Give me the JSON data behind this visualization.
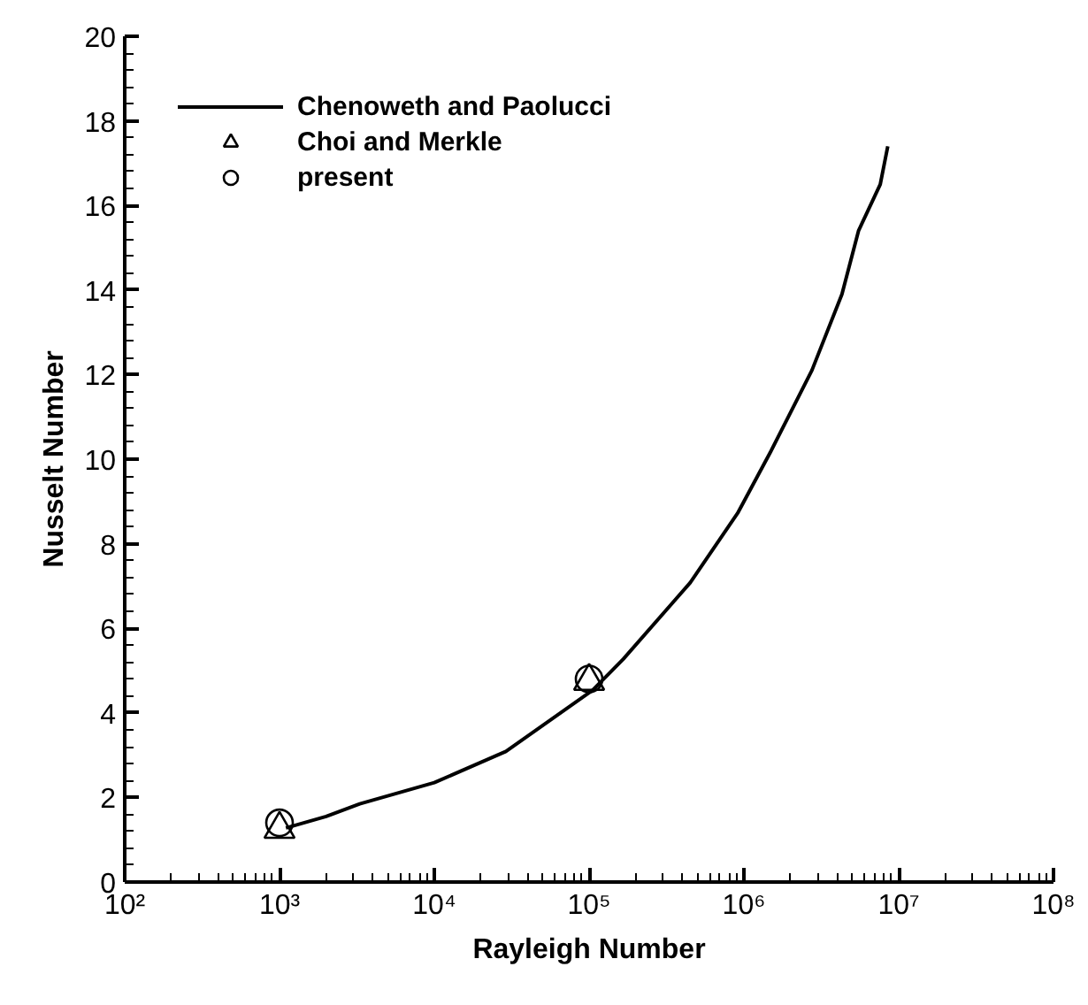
{
  "chart_data": {
    "type": "line",
    "xlabel": "Rayleigh Number",
    "ylabel": "Nusselt Number",
    "log": "x",
    "xlim": [
      100,
      100000000
    ],
    "ylim": [
      0,
      20
    ],
    "xticks": [
      {
        "value": 100,
        "label": "10²"
      },
      {
        "value": 1000,
        "label": "10³"
      },
      {
        "value": 10000,
        "label": "10⁴"
      },
      {
        "value": 100000,
        "label": "10⁵"
      },
      {
        "value": 1000000,
        "label": "10⁶"
      },
      {
        "value": 10000000,
        "label": "10⁷"
      },
      {
        "value": 100000000,
        "label": "10⁸"
      }
    ],
    "yticks": [
      0,
      2,
      4,
      6,
      8,
      10,
      12,
      14,
      16,
      18,
      20
    ],
    "grid": false,
    "legend": "top left",
    "series": [
      {
        "name": "Chenoweth and Paolucci",
        "color": "#000000",
        "marker": "none",
        "x": [
          1100,
          2000,
          3300,
          10000,
          29000,
          105000,
          166000,
          450000,
          910000,
          1500000,
          2750000,
          4300000,
          5500000,
          7600000,
          8500000
        ],
        "values": [
          1.28,
          1.55,
          1.85,
          2.35,
          3.09,
          4.53,
          5.27,
          7.08,
          8.72,
          10.2,
          12.1,
          13.9,
          15.4,
          16.5,
          17.4
        ]
      },
      {
        "name": "Choi and Merkle",
        "type": "scatter",
        "color": "#000000",
        "marker": "triangle",
        "x": [
          1000,
          100000
        ],
        "values": [
          1.25,
          4.75
        ]
      },
      {
        "name": "present",
        "type": "scatter",
        "color": "#000000",
        "marker": "circle",
        "x": [
          1000,
          100000
        ],
        "values": [
          1.4,
          4.8
        ]
      }
    ]
  }
}
